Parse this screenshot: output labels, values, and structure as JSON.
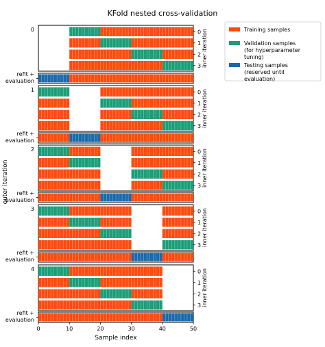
{
  "chart_data": {
    "type": "bar",
    "title": "KFold nested cross-validation",
    "xlabel": "Sample index",
    "ylabel": "outer iteration",
    "right_label": "inner iteration",
    "xlim": [
      0,
      50
    ],
    "x_ticks": [
      0,
      10,
      20,
      30,
      40,
      50
    ],
    "n_samples": 50,
    "refit_label": "refit +\nevaluation",
    "colors": {
      "train": "#ff4a0f",
      "validation": "#1b9e77",
      "test": "#1a6aab"
    },
    "legend": [
      {
        "key": "train",
        "label": "Training samples"
      },
      {
        "key": "validation",
        "label": "Validation samples\n(for hyperparameter\ntuning)"
      },
      {
        "key": "test",
        "label": "Testing samples\n(reserved until\nevaluation)"
      }
    ],
    "legend_position": "upper-right-outside",
    "outer_iterations": [
      {
        "label": "0",
        "inner": [
          {
            "label": "0",
            "segments": [
              [
                10,
                20,
                "validation"
              ],
              [
                20,
                50,
                "train"
              ]
            ]
          },
          {
            "label": "1",
            "segments": [
              [
                10,
                20,
                "train"
              ],
              [
                20,
                30,
                "validation"
              ],
              [
                30,
                50,
                "train"
              ]
            ]
          },
          {
            "label": "2",
            "segments": [
              [
                10,
                30,
                "train"
              ],
              [
                30,
                40,
                "validation"
              ],
              [
                40,
                50,
                "train"
              ]
            ]
          },
          {
            "label": "3",
            "segments": [
              [
                10,
                40,
                "train"
              ],
              [
                40,
                50,
                "validation"
              ]
            ]
          }
        ],
        "refit": [
          [
            0,
            10,
            "test"
          ],
          [
            10,
            50,
            "train"
          ]
        ]
      },
      {
        "label": "1",
        "inner": [
          {
            "label": "0",
            "segments": [
              [
                0,
                10,
                "validation"
              ],
              [
                20,
                50,
                "train"
              ]
            ]
          },
          {
            "label": "1",
            "segments": [
              [
                0,
                10,
                "train"
              ],
              [
                20,
                30,
                "validation"
              ],
              [
                30,
                50,
                "train"
              ]
            ]
          },
          {
            "label": "2",
            "segments": [
              [
                0,
                10,
                "train"
              ],
              [
                20,
                30,
                "train"
              ],
              [
                30,
                40,
                "validation"
              ],
              [
                40,
                50,
                "train"
              ]
            ]
          },
          {
            "label": "3",
            "segments": [
              [
                0,
                10,
                "train"
              ],
              [
                20,
                40,
                "train"
              ],
              [
                40,
                50,
                "validation"
              ]
            ]
          }
        ],
        "refit": [
          [
            0,
            10,
            "train"
          ],
          [
            10,
            20,
            "test"
          ],
          [
            20,
            50,
            "train"
          ]
        ]
      },
      {
        "label": "2",
        "inner": [
          {
            "label": "0",
            "segments": [
              [
                0,
                10,
                "validation"
              ],
              [
                10,
                20,
                "train"
              ],
              [
                30,
                50,
                "train"
              ]
            ]
          },
          {
            "label": "1",
            "segments": [
              [
                0,
                10,
                "train"
              ],
              [
                10,
                20,
                "validation"
              ],
              [
                30,
                50,
                "train"
              ]
            ]
          },
          {
            "label": "2",
            "segments": [
              [
                0,
                20,
                "train"
              ],
              [
                30,
                40,
                "validation"
              ],
              [
                40,
                50,
                "train"
              ]
            ]
          },
          {
            "label": "3",
            "segments": [
              [
                0,
                20,
                "train"
              ],
              [
                30,
                40,
                "train"
              ],
              [
                40,
                50,
                "validation"
              ]
            ]
          }
        ],
        "refit": [
          [
            0,
            20,
            "train"
          ],
          [
            20,
            30,
            "test"
          ],
          [
            30,
            50,
            "train"
          ]
        ]
      },
      {
        "label": "3",
        "inner": [
          {
            "label": "0",
            "segments": [
              [
                0,
                10,
                "validation"
              ],
              [
                10,
                30,
                "train"
              ],
              [
                40,
                50,
                "train"
              ]
            ]
          },
          {
            "label": "1",
            "segments": [
              [
                0,
                10,
                "train"
              ],
              [
                10,
                20,
                "validation"
              ],
              [
                20,
                30,
                "train"
              ],
              [
                40,
                50,
                "train"
              ]
            ]
          },
          {
            "label": "2",
            "segments": [
              [
                0,
                20,
                "train"
              ],
              [
                20,
                30,
                "validation"
              ],
              [
                40,
                50,
                "train"
              ]
            ]
          },
          {
            "label": "3",
            "segments": [
              [
                0,
                30,
                "train"
              ],
              [
                40,
                50,
                "validation"
              ]
            ]
          }
        ],
        "refit": [
          [
            0,
            30,
            "train"
          ],
          [
            30,
            40,
            "test"
          ],
          [
            40,
            50,
            "train"
          ]
        ]
      },
      {
        "label": "4",
        "inner": [
          {
            "label": "0",
            "segments": [
              [
                0,
                10,
                "validation"
              ],
              [
                10,
                40,
                "train"
              ]
            ]
          },
          {
            "label": "1",
            "segments": [
              [
                0,
                10,
                "train"
              ],
              [
                10,
                20,
                "validation"
              ],
              [
                20,
                40,
                "train"
              ]
            ]
          },
          {
            "label": "2",
            "segments": [
              [
                0,
                20,
                "train"
              ],
              [
                20,
                30,
                "validation"
              ],
              [
                30,
                40,
                "train"
              ]
            ]
          },
          {
            "label": "3",
            "segments": [
              [
                0,
                30,
                "train"
              ],
              [
                30,
                40,
                "validation"
              ]
            ]
          }
        ],
        "refit": [
          [
            0,
            40,
            "train"
          ],
          [
            40,
            50,
            "test"
          ]
        ]
      }
    ]
  }
}
